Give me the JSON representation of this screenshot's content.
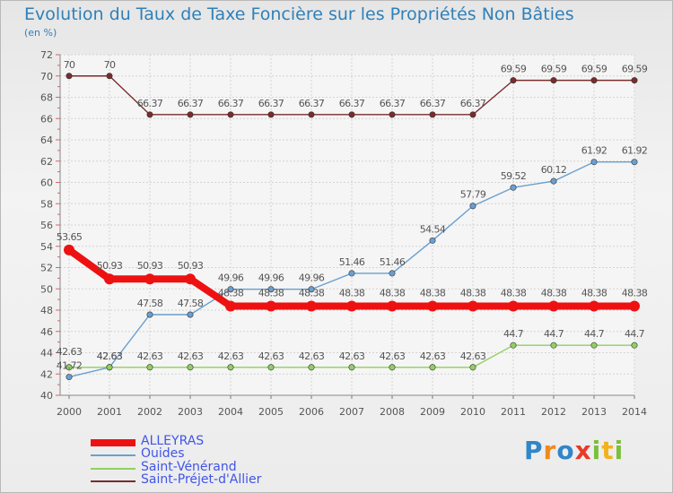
{
  "title": "Evolution du Taux de Taxe Foncière sur les Propriétés Non Bâties",
  "unit_label": "(en %)",
  "brand": {
    "text": "Proxiti",
    "letters": [
      {
        "char": "P",
        "color": "#2f86c8"
      },
      {
        "char": "r",
        "color": "#f08a1c"
      },
      {
        "char": "o",
        "color": "#2f86c8"
      },
      {
        "char": "x",
        "color": "#e83a2a"
      },
      {
        "char": "i",
        "color": "#7bbf3a"
      },
      {
        "char": "t",
        "color": "#f2b21c"
      },
      {
        "char": "i",
        "color": "#7bbf3a"
      }
    ]
  },
  "chart_data": {
    "type": "line",
    "x": [
      "2000",
      "2001",
      "2002",
      "2003",
      "2004",
      "2005",
      "2006",
      "2007",
      "2008",
      "2009",
      "2010",
      "2011",
      "2012",
      "2013",
      "2014"
    ],
    "ylim": [
      40,
      72
    ],
    "yticks": [
      40,
      42,
      44,
      46,
      48,
      50,
      52,
      54,
      56,
      58,
      60,
      62,
      64,
      66,
      68,
      70,
      72
    ],
    "grid": true,
    "legend_position": "bottom-left",
    "series": [
      {
        "name": "ALLEYRAS",
        "color": "#ee1111",
        "values": [
          53.65,
          50.93,
          50.93,
          50.93,
          48.38,
          48.38,
          48.38,
          48.38,
          48.38,
          48.38,
          48.38,
          48.38,
          48.38,
          48.38,
          48.38
        ],
        "labels": [
          "53.65",
          "50.93",
          "50.93",
          "50.93",
          "48.38",
          "48.38",
          "48.38",
          "48.38",
          "48.38",
          "48.38",
          "48.38",
          "48.38",
          "48.38",
          "48.38",
          "48.38"
        ]
      },
      {
        "name": "Ouides",
        "color": "#6a9fd0",
        "values": [
          41.72,
          42.63,
          47.58,
          47.58,
          49.96,
          49.96,
          49.96,
          51.46,
          51.46,
          54.54,
          57.79,
          59.52,
          60.12,
          61.92,
          61.92
        ],
        "labels": [
          "41.72",
          "42.63",
          "47.58",
          "47.58",
          "49.96",
          "49.96",
          "49.96",
          "51.46",
          "51.46",
          "54.54",
          "57.79",
          "59.52",
          "60.12",
          "61.92",
          "61.92"
        ]
      },
      {
        "name": "Saint-Vénérand",
        "color": "#90d060",
        "values": [
          42.63,
          42.63,
          42.63,
          42.63,
          42.63,
          42.63,
          42.63,
          42.63,
          42.63,
          42.63,
          42.63,
          44.7,
          44.7,
          44.7,
          44.7
        ],
        "labels": [
          "42.63",
          "42.63",
          "42.63",
          "42.63",
          "42.63",
          "42.63",
          "42.63",
          "42.63",
          "42.63",
          "42.63",
          "42.63",
          "44.7",
          "44.7",
          "44.7",
          "44.7"
        ]
      },
      {
        "name": "Saint-Préjet-d'Allier",
        "color": "#7a2c2c",
        "values": [
          70,
          70,
          66.37,
          66.37,
          66.37,
          66.37,
          66.37,
          66.37,
          66.37,
          66.37,
          66.37,
          69.59,
          69.59,
          69.59,
          69.59
        ],
        "labels": [
          "70",
          "70",
          "66.37",
          "66.37",
          "66.37",
          "66.37",
          "66.37",
          "66.37",
          "66.37",
          "66.37",
          "66.37",
          "69.59",
          "69.59",
          "69.59",
          "69.59"
        ]
      }
    ]
  }
}
